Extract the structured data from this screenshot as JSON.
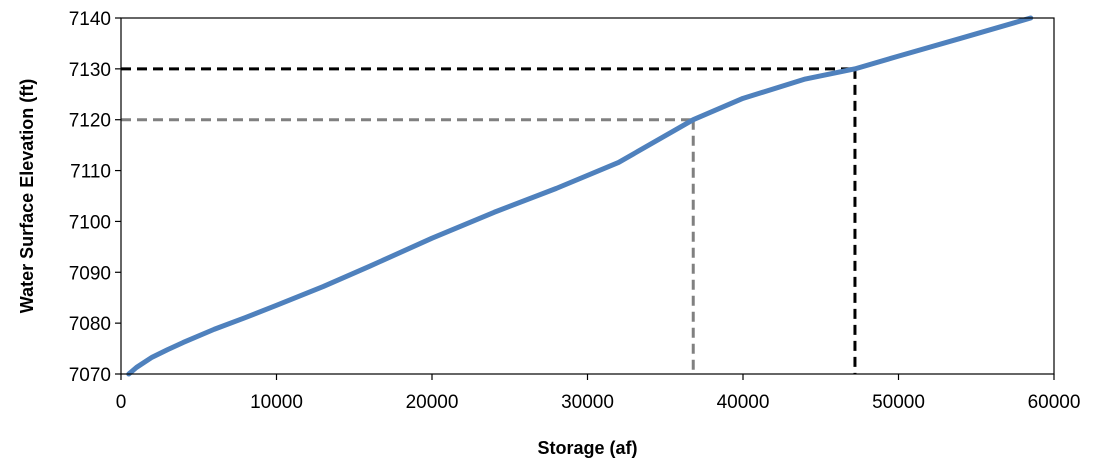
{
  "chart_data": {
    "type": "line",
    "title": "",
    "xlabel": "Storage (af)",
    "ylabel": "Water Surface  Elevation  (ft)",
    "xlim": [
      0,
      60000
    ],
    "ylim": [
      7070,
      7140
    ],
    "xticks": [
      "0",
      "10000",
      "20000",
      "30000",
      "40000",
      "50000",
      "60000"
    ],
    "yticks": [
      "7070",
      "7080",
      "7090",
      "7100",
      "7110",
      "7120",
      "7130",
      "7140"
    ],
    "grid": false,
    "legend": "none",
    "series": [
      {
        "color": "#4f81bd",
        "x": [
          500,
          1000,
          2000,
          3000,
          4000,
          6000,
          8000,
          10000,
          13000,
          16000,
          20000,
          24000,
          28000,
          32000,
          36800,
          40000,
          44000,
          47200,
          50000,
          54000,
          58500
        ],
        "y": [
          7070,
          7071.3,
          7073.3,
          7074.8,
          7076.2,
          7078.8,
          7081.1,
          7083.5,
          7087.2,
          7091.2,
          7096.7,
          7101.8,
          7106.5,
          7111.6,
          7120.0,
          7124.2,
          7128.0,
          7130.0,
          7132.5,
          7136.0,
          7140.0
        ]
      }
    ],
    "reference_lines": [
      {
        "color": "#808080",
        "x": 36800,
        "y": 7120
      },
      {
        "color": "#000000",
        "x": 47200,
        "y": 7130
      }
    ]
  }
}
